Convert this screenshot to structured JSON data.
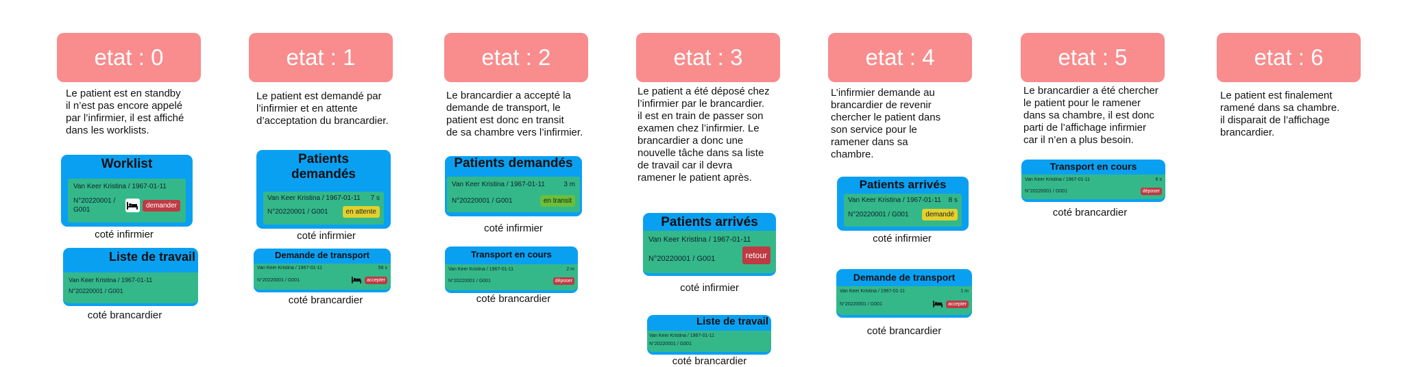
{
  "states": [
    {
      "header": "etat : 0",
      "description": [
        "Le patient est en standby",
        "il n’est pas encore appelé",
        "par l’infirmier, il est affiché",
        "dans les worklists."
      ],
      "cards": [
        {
          "title": "Worklist",
          "line1": "Van Keer Kristina / 1967-01-11",
          "line2": "N°20220001 / G001",
          "badge": "demander",
          "icon": "bed-icon",
          "caption": "coté infirmier"
        },
        {
          "title": "Liste de travail",
          "line1": "Van Keer Kristina / 1967-01-11",
          "line2": "N°20220001 / G001",
          "caption": "coté brancardier"
        }
      ]
    },
    {
      "header": "etat : 1",
      "description": [
        "Le patient est demandé par",
        "l’infirmier et en attente",
        "d’acceptation du brancardier."
      ],
      "cards": [
        {
          "title": "Patients demandés",
          "line1": "Van Keer Kristina / 1967-01-11",
          "time": "7 s",
          "line2": "N°20220001 / G001",
          "badge": "en attente",
          "caption": "coté infirmier"
        },
        {
          "title": "Demande de transport",
          "line1": "Van Keer Kristina / 1967-01-11",
          "time": "58 s",
          "line2": "N°20220001 / G001",
          "badge": "accepter",
          "icon": "bed-icon",
          "caption": "coté brancardier"
        }
      ]
    },
    {
      "header": "etat : 2",
      "description": [
        "Le brancardier a accepté la",
        "demande de transport, le",
        "patient est donc en transit",
        "de sa chambre vers l’infirmier."
      ],
      "cards": [
        {
          "title": "Patients demandés",
          "line1": "Van Keer Kristina / 1967-01-11",
          "time": "3 m",
          "line2": "N°20220001 / G001",
          "badge": "en transit",
          "caption": "coté infirmier"
        },
        {
          "title": "Transport en cours",
          "line1": "Van Keer Kristina / 1967-01-11",
          "time": "2 m",
          "line2": "N°20220001 / G001",
          "badge": "déposer",
          "caption": "coté brancardier"
        }
      ]
    },
    {
      "header": "etat : 3",
      "description": [
        "Le patient a été déposé chez",
        "l’infirmier par le brancardier.",
        "il est en train de passer son",
        "examen chez l’infirmier. Le",
        "brancardier a donc une",
        "nouvelle tâche dans sa liste",
        "de travail car il devra",
        "ramener le patient après."
      ],
      "cards": [
        {
          "title": "Patients arrivés",
          "line1": "Van Keer Kristina / 1967-01-11",
          "line2": "N°20220001 / G001",
          "badge": "retour",
          "caption": "coté infirmier"
        },
        {
          "title": "Liste de travail",
          "line1": "Van Keer Kristina / 1967-01-11",
          "line2": "N°20220001 / G001",
          "caption": "coté brancardier"
        }
      ]
    },
    {
      "header": "etat : 4",
      "description": [
        "L’infirmier demande au",
        "brancardier de revenir",
        "chercher le patient dans",
        "son service pour le",
        "ramener dans sa",
        "chambre."
      ],
      "cards": [
        {
          "title": "Patients arrivés",
          "line1": "Van Keer Kristina / 1967-01-11",
          "time": "8 s",
          "line2": "N°20220001 / G001",
          "badge": "demandé",
          "caption": "coté infirmier"
        },
        {
          "title": "Demande de transport",
          "line1": "Van Keer Kristina / 1967-01-11",
          "time": "1 m",
          "line2": "N°20220001 / G001",
          "badge": "accepter",
          "icon": "bed-icon",
          "caption": "coté brancardier"
        }
      ]
    },
    {
      "header": "etat : 5",
      "description": [
        "Le brancardier a été chercher",
        "le patient pour le ramener",
        "dans sa chambre, il est donc",
        "parti de l’affichage infirmier",
        "car il n’en a plus besoin."
      ],
      "cards": [
        {
          "title": "Transport en cours",
          "line1": "Van Keer Kristina / 1967-01-11",
          "time": "6 s",
          "line2": "N°20220001 / G001",
          "badge": "déposer",
          "caption": "coté brancardier"
        }
      ]
    },
    {
      "header": "etat : 6",
      "description": [
        "Le patient est finalement",
        "ramené dans sa chambre.",
        "il disparait de l’affichage",
        "brancardier."
      ],
      "cards": []
    }
  ],
  "colors": {
    "header": "#f98c8d",
    "card": "#0aa0f2",
    "inner": "#34b889",
    "badge_red": "#bf3a44",
    "badge_yellow": "#e3d02c",
    "badge_green": "#6bbf3b"
  }
}
